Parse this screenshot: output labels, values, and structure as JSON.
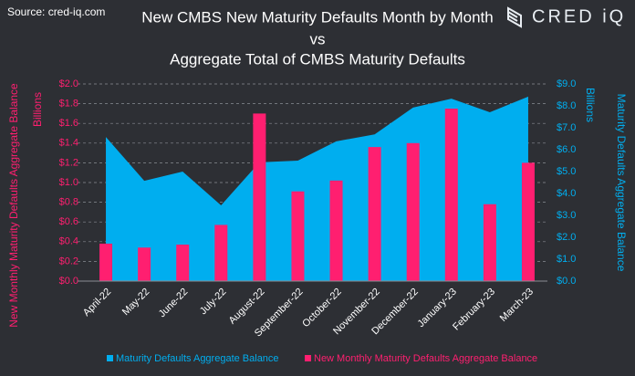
{
  "source": "Source: cred-iq.com",
  "logo": "CRED iQ",
  "chart_data": {
    "type": "combo",
    "title": [
      "New CMBS New Maturity Defaults Month by Month",
      "vs",
      "Aggregate Total of CMBS Maturity Defaults"
    ],
    "y_label": "New Monthly Maturity Defaults Aggregate Balance",
    "y_unit": "Billions",
    "y2_label": "Maturity Defaults Aggregate Balance",
    "y2_unit": "Billions",
    "categories": [
      "April-22",
      "May-22",
      "June-22",
      "July-22",
      "August-22",
      "September-22",
      "October-22",
      "November-22",
      "December-22",
      "January-23",
      "February-23",
      "March-23"
    ],
    "series": [
      {
        "name": "Maturity Defaults Aggregate Balance",
        "type": "area",
        "axis": "y2",
        "color": "#00aeef",
        "values": [
          6.58,
          4.58,
          5.0,
          3.46,
          5.42,
          5.5,
          6.38,
          6.7,
          7.92,
          8.33,
          7.71,
          8.42
        ]
      },
      {
        "name": "New Monthly Maturity Defaults Aggregate Balance",
        "type": "bar",
        "color": "#ff1f70",
        "values": [
          0.38,
          0.34,
          0.37,
          0.57,
          1.7,
          0.91,
          1.02,
          1.36,
          1.4,
          1.75,
          0.78,
          1.2
        ]
      }
    ],
    "ylim": [
      0,
      2.0
    ],
    "yticks": [
      {
        "value": 0,
        "label": "$0.0"
      },
      {
        "value": 0.2,
        "label": "$0.2"
      },
      {
        "value": 0.4,
        "label": "$0.4"
      },
      {
        "value": 0.6,
        "label": "$0.6"
      },
      {
        "value": 0.8,
        "label": "$0.8"
      },
      {
        "value": 1.0,
        "label": "$1.0"
      },
      {
        "value": 1.2,
        "label": "$1.2"
      },
      {
        "value": 1.4,
        "label": "$1.4"
      },
      {
        "value": 1.6,
        "label": "$1.6"
      },
      {
        "value": 1.8,
        "label": "$1.8"
      },
      {
        "value": 2.0,
        "label": "$2.0"
      }
    ],
    "y2lim": [
      0,
      9.0
    ],
    "y2ticks": [
      {
        "value": 0,
        "label": "$0.0"
      },
      {
        "value": 1,
        "label": "$1.0"
      },
      {
        "value": 2,
        "label": "$2.0"
      },
      {
        "value": 3,
        "label": "$3.0"
      },
      {
        "value": 4,
        "label": "$4.0"
      },
      {
        "value": 5,
        "label": "$5.0"
      },
      {
        "value": 6,
        "label": "$6.0"
      },
      {
        "value": 7,
        "label": "$7.0"
      },
      {
        "value": 8,
        "label": "$8.0"
      },
      {
        "value": 9,
        "label": "$9.0"
      }
    ],
    "grid": true,
    "legend": "bottom"
  }
}
